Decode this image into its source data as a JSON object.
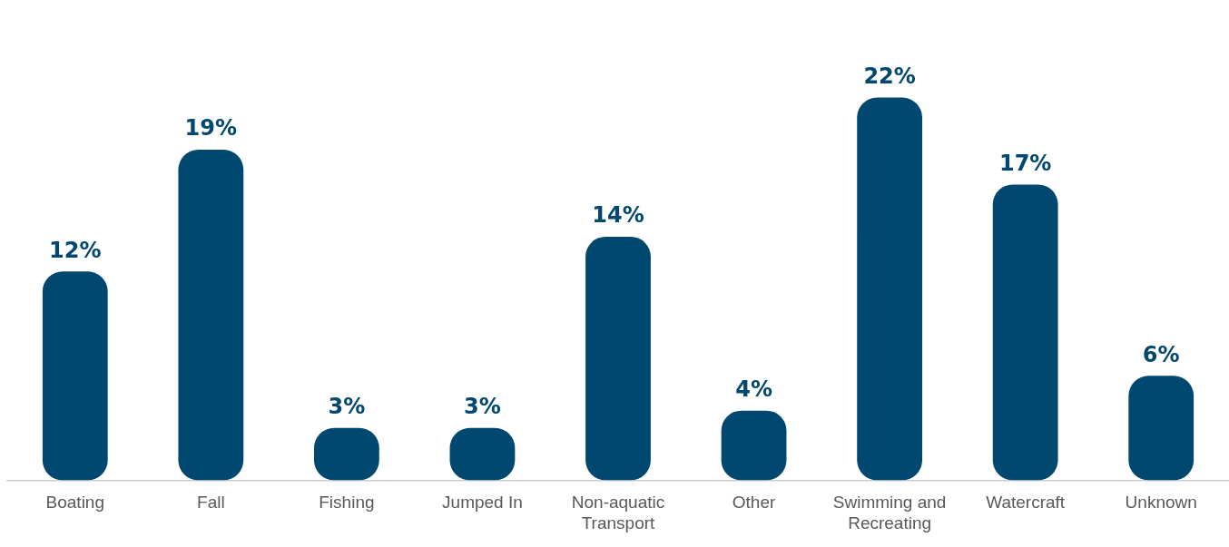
{
  "chart_data": {
    "type": "bar",
    "categories": [
      "Boating",
      "Fall",
      "Fishing",
      "Jumped In",
      "Non-aquatic Transport",
      "Other",
      "Swimming and Recreating",
      "Watercraft",
      "Unknown"
    ],
    "values": [
      12,
      19,
      3,
      3,
      14,
      4,
      22,
      17,
      6
    ],
    "value_labels": [
      "12%",
      "19%",
      "3%",
      "3%",
      "14%",
      "4%",
      "22%",
      "17%",
      "6%"
    ],
    "color": "#00486f",
    "grid": false,
    "legend": false
  }
}
